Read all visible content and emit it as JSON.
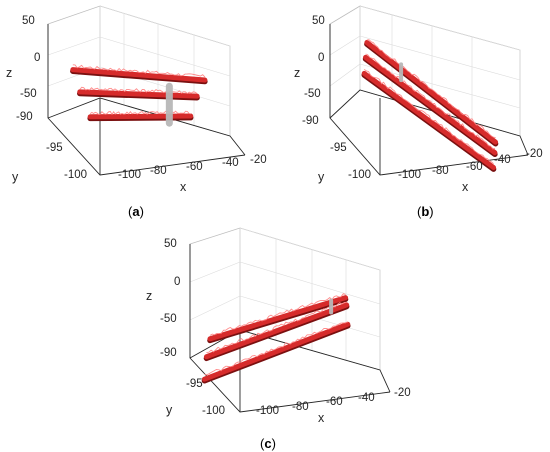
{
  "panel_captions": [
    "(a)",
    "(b)",
    "(c)"
  ],
  "colors": {
    "rod": "#d62b2b",
    "rod_shadow": "#7a1010",
    "rod_highlight": "#ff8080",
    "clamp": "#b8b8b8",
    "axis": "#262626",
    "grid": "#dcdcdc"
  },
  "chart_data": [
    {
      "type": "surface3d",
      "panel": "a",
      "xlabel": "x",
      "ylabel": "y",
      "zlabel": "z",
      "xlim": [
        -110,
        -20
      ],
      "ylim": [
        -100,
        -85
      ],
      "zlim": [
        -90,
        50
      ],
      "xticks": [
        "-100",
        "-80",
        "-60",
        "-40",
        "-20"
      ],
      "yticks": [
        "-90",
        "-95",
        "-100"
      ],
      "zticks": [
        "50",
        "0",
        "-50"
      ],
      "grid": true,
      "series": [
        {
          "start": [
            -100,
            -97,
            30
          ],
          "end": [
            -35,
            -86,
            -10
          ]
        },
        {
          "start": [
            -100,
            -95,
            -15
          ],
          "end": [
            -38,
            -87,
            -30
          ]
        },
        {
          "start": [
            -100,
            -92,
            -70
          ],
          "end": [
            -40,
            -88,
            -55
          ]
        }
      ],
      "clamp": {
        "x": -50,
        "y": -90,
        "z_range": [
          -60,
          -5
        ]
      }
    },
    {
      "type": "surface3d",
      "panel": "b",
      "xlabel": "x",
      "ylabel": "y",
      "zlabel": "z",
      "xlim": [
        -110,
        -20
      ],
      "ylim": [
        -100,
        -85
      ],
      "zlim": [
        -90,
        50
      ],
      "xticks": [
        "-100",
        "-80",
        "-60",
        "-40",
        "-20"
      ],
      "yticks": [
        "-90",
        "-95",
        "-100"
      ],
      "zticks": [
        "50",
        "0",
        "-50"
      ],
      "grid": true,
      "series": [
        {
          "start": [
            -105,
            -88,
            10
          ],
          "end": [
            -30,
            -95,
            -40
          ]
        },
        {
          "start": [
            -105,
            -90,
            0
          ],
          "end": [
            -30,
            -96,
            -50
          ]
        },
        {
          "start": [
            -105,
            -92,
            -12
          ],
          "end": [
            -30,
            -98,
            -60
          ]
        }
      ],
      "clamp": {
        "x": -85,
        "y": -90,
        "z_range": [
          -20,
          5
        ]
      }
    },
    {
      "type": "surface3d",
      "panel": "c",
      "xlabel": "x",
      "ylabel": "y",
      "zlabel": "z",
      "xlim": [
        -110,
        -20
      ],
      "ylim": [
        -100,
        -85
      ],
      "zlim": [
        -90,
        50
      ],
      "xticks": [
        "-100",
        "-80",
        "-60",
        "-40",
        "-20"
      ],
      "yticks": [
        "-90",
        "-95",
        "-100"
      ],
      "zticks": [
        "50",
        "0",
        "-50"
      ],
      "grid": true,
      "series": [
        {
          "start": [
            -110,
            -94,
            -50
          ],
          "end": [
            -40,
            -86,
            -5
          ]
        },
        {
          "start": [
            -108,
            -96,
            -60
          ],
          "end": [
            -35,
            -88,
            0
          ]
        },
        {
          "start": [
            -105,
            -98,
            -75
          ],
          "end": [
            -30,
            -90,
            -10
          ]
        }
      ],
      "clamp": {
        "x": -45,
        "y": -88,
        "z_range": [
          -15,
          0
        ]
      }
    }
  ]
}
